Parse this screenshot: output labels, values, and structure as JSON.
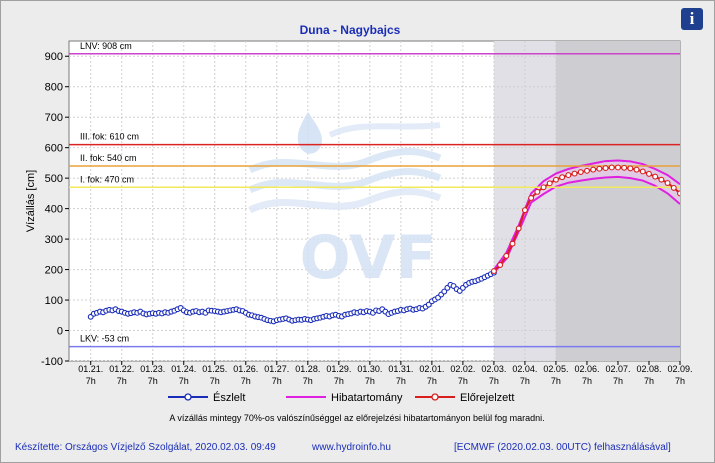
{
  "chart_data": {
    "type": "line",
    "title": "Duna - Nagybajcs",
    "ylabel": "Vízállás [cm]",
    "ylim": [
      -100,
      950
    ],
    "yticks": [
      -100,
      0,
      100,
      200,
      300,
      400,
      500,
      600,
      700,
      800,
      900
    ],
    "xlim": [
      "01.20 14h",
      "02.09 7h"
    ],
    "xticks": [
      "01.21. 7h",
      "01.22. 7h",
      "01.23. 7h",
      "01.24. 7h",
      "01.25. 7h",
      "01.26. 7h",
      "01.27. 7h",
      "01.28. 7h",
      "01.29. 7h",
      "01.30. 7h",
      "01.31. 7h",
      "02.01. 7h",
      "02.02. 7h",
      "02.03. 7h",
      "02.04. 7h",
      "02.05. 7h",
      "02.06. 7h",
      "02.07. 7h",
      "02.08. 7h",
      "02.09. 7h"
    ],
    "grid": true,
    "legend_position": "bottom",
    "shaded_periods": [
      {
        "from": "02.03 7h",
        "to": "02.05 7h",
        "color": "#e0e0e6"
      },
      {
        "from": "02.05 7h",
        "to": "02.09 7h",
        "color": "#cdcdd2"
      }
    ],
    "reference_lines": [
      {
        "label": "LNV: 908 cm",
        "value": 908,
        "color": "#cc44cc"
      },
      {
        "label": "III. fok: 610 cm",
        "value": 610,
        "color": "#dd2222"
      },
      {
        "label": "II. fok: 540 cm",
        "value": 540,
        "color": "#e8a23a"
      },
      {
        "label": "I. fok: 470 cm",
        "value": 470,
        "color": "#f2ea5a"
      },
      {
        "label": "LKV: -53 cm",
        "value": -53,
        "color": "#7b7bf0"
      }
    ],
    "series": [
      {
        "name": "Észlelt",
        "color": "#1a2db8",
        "x": [
          0.0,
          0.1,
          0.2,
          0.3,
          0.4,
          0.5,
          0.6,
          0.7,
          0.8,
          0.9,
          1.0,
          1.1,
          1.2,
          1.3,
          1.4,
          1.5,
          1.6,
          1.7,
          1.8,
          1.9,
          2.0,
          2.1,
          2.2,
          2.3,
          2.4,
          2.5,
          2.6,
          2.7,
          2.8,
          2.9,
          3.0,
          3.1,
          3.2,
          3.3,
          3.4,
          3.5,
          3.6,
          3.7,
          3.8,
          3.9,
          4.0,
          4.1,
          4.2,
          4.3,
          4.4,
          4.5,
          4.6,
          4.7,
          4.8,
          4.9,
          5.0,
          5.1,
          5.2,
          5.3,
          5.4,
          5.5,
          5.6,
          5.7,
          5.8,
          5.9,
          6.0,
          6.1,
          6.2,
          6.3,
          6.4,
          6.5,
          6.6,
          6.7,
          6.8,
          6.9,
          7.0,
          7.1,
          7.2,
          7.3,
          7.4,
          7.5,
          7.6,
          7.7,
          7.8,
          7.9,
          8.0,
          8.1,
          8.2,
          8.3,
          8.4,
          8.5,
          8.6,
          8.7,
          8.8,
          8.9,
          9.0,
          9.1,
          9.2,
          9.3,
          9.4,
          9.5,
          9.6,
          9.7,
          9.8,
          9.9,
          10.0,
          10.1,
          10.2,
          10.3,
          10.4,
          10.5,
          10.6,
          10.7,
          10.8,
          10.9,
          11.0,
          11.1,
          11.2,
          11.3,
          11.4,
          11.5,
          11.6,
          11.7,
          11.8,
          11.9,
          12.0,
          12.1,
          12.2,
          12.3,
          12.4,
          12.5,
          12.6,
          12.7,
          12.8,
          12.9,
          13.0
        ],
        "y": [
          45,
          55,
          58,
          62,
          60,
          65,
          68,
          66,
          70,
          64,
          62,
          58,
          55,
          57,
          60,
          58,
          62,
          56,
          53,
          55,
          57,
          55,
          58,
          56,
          60,
          58,
          62,
          65,
          70,
          74,
          66,
          60,
          58,
          62,
          64,
          60,
          62,
          58,
          66,
          65,
          64,
          62,
          60,
          62,
          64,
          66,
          68,
          70,
          66,
          64,
          58,
          52,
          50,
          46,
          44,
          42,
          38,
          34,
          32,
          30,
          34,
          36,
          38,
          40,
          36,
          32,
          34,
          36,
          35,
          38,
          36,
          34,
          38,
          40,
          42,
          45,
          48,
          46,
          50,
          52,
          48,
          46,
          52,
          54,
          56,
          60,
          58,
          62,
          60,
          64,
          62,
          58,
          66,
          64,
          70,
          62,
          54,
          58,
          62,
          64,
          68,
          66,
          70,
          72,
          68,
          70,
          74,
          72,
          78,
          85,
          96,
          102,
          108,
          118,
          128,
          140,
          150,
          146,
          136,
          130,
          140,
          150,
          156,
          160,
          162,
          166,
          170,
          175,
          180,
          185,
          190
        ]
      },
      {
        "name": "Előrejelzett",
        "color": "#d81e1e",
        "x": [
          13.0,
          13.2,
          13.4,
          13.6,
          13.8,
          14.0,
          14.2,
          14.4,
          14.6,
          14.8,
          15.0,
          15.2,
          15.4,
          15.6,
          15.8,
          16.0,
          16.2,
          16.4,
          16.6,
          16.8,
          17.0,
          17.2,
          17.4,
          17.6,
          17.8,
          18.0,
          18.2,
          18.4,
          18.6,
          18.8,
          19.0
        ],
        "y": [
          195,
          215,
          245,
          285,
          335,
          395,
          435,
          455,
          470,
          483,
          495,
          503,
          510,
          515,
          520,
          524,
          528,
          531,
          533,
          535,
          535,
          534,
          532,
          528,
          522,
          514,
          505,
          495,
          484,
          468,
          450
        ]
      },
      {
        "name": "Hibatartomány",
        "color": "#e020e0",
        "x": [
          13.0,
          13.4,
          13.8,
          14.2,
          14.6,
          15.0,
          15.4,
          15.8,
          16.2,
          16.6,
          17.0,
          17.4,
          17.8,
          18.2,
          18.6,
          19.0
        ],
        "upper": [
          200,
          255,
          345,
          450,
          490,
          515,
          530,
          540,
          548,
          556,
          558,
          555,
          546,
          530,
          510,
          480
        ],
        "lower": [
          190,
          235,
          325,
          420,
          448,
          472,
          485,
          492,
          498,
          502,
          504,
          500,
          492,
          475,
          450,
          415
        ]
      }
    ]
  },
  "note": "A vízállás mintegy 70%-os valószínűséggel az előrejelzési hibatartományon belül fog maradni.",
  "footer": {
    "author": "Készítette: Országos Vízjelző Szolgálat, 2020.02.03. 09:49",
    "website": "www.hydroinfo.hu",
    "model": "[ECMWF (2020.02.03. 00UTC) felhasználásával]"
  },
  "watermark": "OVF",
  "info_icon": "i",
  "colors": {
    "text_blue": "#1a2db8",
    "grid": "#c8c8c8"
  }
}
